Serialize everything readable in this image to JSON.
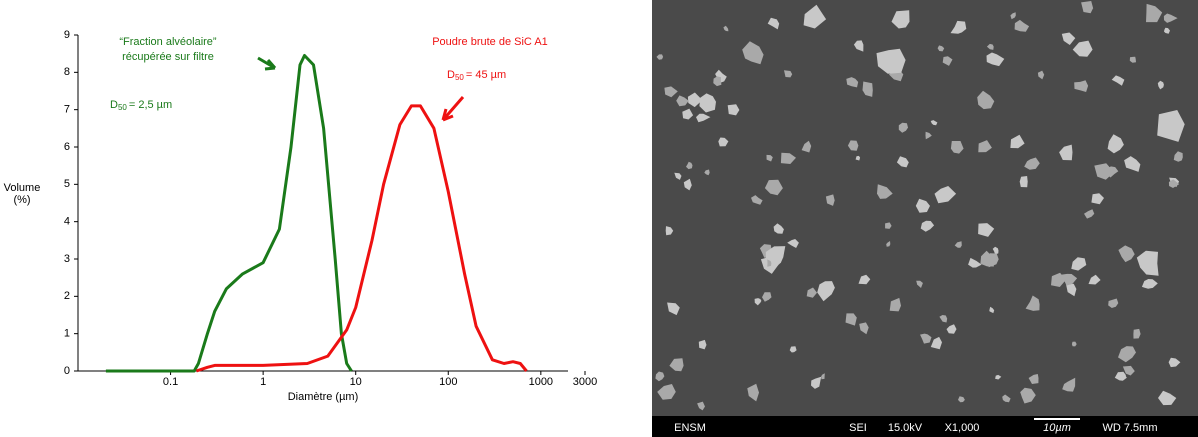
{
  "chart_data": {
    "type": "line",
    "xscale": "log",
    "xlabel": "Diamètre (µm)",
    "ylabel": [
      "Volume",
      "(%)"
    ],
    "xlim": [
      0.01,
      3000
    ],
    "xticks": [
      0.1,
      1,
      10,
      100,
      1000,
      3000
    ],
    "ylim": [
      0,
      9
    ],
    "yticks": [
      0,
      1,
      2,
      3,
      4,
      5,
      6,
      7,
      8,
      9
    ],
    "series": [
      {
        "color": "#1a7a1a",
        "x": [
          0.02,
          0.1,
          0.18,
          0.2,
          0.25,
          0.3,
          0.4,
          0.6,
          1,
          1.5,
          2,
          2.5,
          2.8,
          3.5,
          4.5,
          6,
          7,
          8,
          9
        ],
        "values": [
          0,
          0,
          0,
          0.2,
          1,
          1.6,
          2.2,
          2.6,
          2.9,
          3.8,
          6,
          8.2,
          8.45,
          8.2,
          6.5,
          3,
          1,
          0.2,
          0
        ]
      },
      {
        "color": "#ee1111",
        "x": [
          0.19,
          0.25,
          0.3,
          1,
          3,
          5,
          8,
          10,
          15,
          20,
          30,
          40,
          50,
          70,
          100,
          150,
          200,
          300,
          400,
          500,
          600,
          700
        ],
        "values": [
          0,
          0.1,
          0.15,
          0.15,
          0.2,
          0.4,
          1.1,
          1.7,
          3.5,
          5,
          6.6,
          7.1,
          7.1,
          6.5,
          4.8,
          2.6,
          1.2,
          0.3,
          0.2,
          0.25,
          0.2,
          0
        ]
      }
    ],
    "annotations": [
      {
        "lines": [
          "“Fraction alvéolaire”",
          "récupérée sur filtre"
        ],
        "d": "D",
        "sub": "50",
        "rest": "= 2,5 µm",
        "color": "#1a7a1a"
      },
      {
        "lines": [
          "Poudre brute de SiC A1"
        ],
        "d": "D",
        "sub": "50",
        "rest": "= 45 µm",
        "color": "#ee1111"
      }
    ]
  },
  "image": {
    "footer": [
      "ENSM",
      "SEI",
      "15.0kV",
      "X1,000",
      "10µm",
      "WD 7.5mm"
    ]
  }
}
